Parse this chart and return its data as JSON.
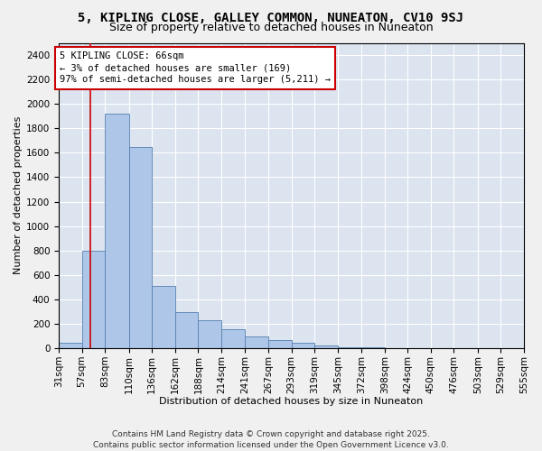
{
  "title": "5, KIPLING CLOSE, GALLEY COMMON, NUNEATON, CV10 9SJ",
  "subtitle": "Size of property relative to detached houses in Nuneaton",
  "xlabel": "Distribution of detached houses by size in Nuneaton",
  "ylabel": "Number of detached properties",
  "bar_color": "#aec6e8",
  "bar_edge_color": "#5580b0",
  "background_color": "#dce4f0",
  "grid_color": "#ffffff",
  "annotation_box_color": "#cc0000",
  "vline_color": "#cc0000",
  "vline_x": 66,
  "annotation_text": "5 KIPLING CLOSE: 66sqm\n← 3% of detached houses are smaller (169)\n97% of semi-detached houses are larger (5,211) →",
  "bin_edges": [
    31,
    57,
    83,
    110,
    136,
    162,
    188,
    214,
    241,
    267,
    293,
    319,
    345,
    372,
    398,
    424,
    450,
    476,
    503,
    529,
    555
  ],
  "bar_heights": [
    45,
    800,
    1920,
    1650,
    510,
    295,
    230,
    155,
    100,
    70,
    45,
    25,
    10,
    8,
    4,
    2,
    1,
    0,
    0,
    0
  ],
  "ylim": [
    0,
    2500
  ],
  "yticks": [
    0,
    200,
    400,
    600,
    800,
    1000,
    1200,
    1400,
    1600,
    1800,
    2000,
    2200,
    2400
  ],
  "footer": "Contains HM Land Registry data © Crown copyright and database right 2025.\nContains public sector information licensed under the Open Government Licence v3.0.",
  "title_fontsize": 10,
  "subtitle_fontsize": 9,
  "xlabel_fontsize": 8,
  "ylabel_fontsize": 8,
  "tick_fontsize": 7.5,
  "footer_fontsize": 6.5,
  "annot_fontsize": 7.5
}
